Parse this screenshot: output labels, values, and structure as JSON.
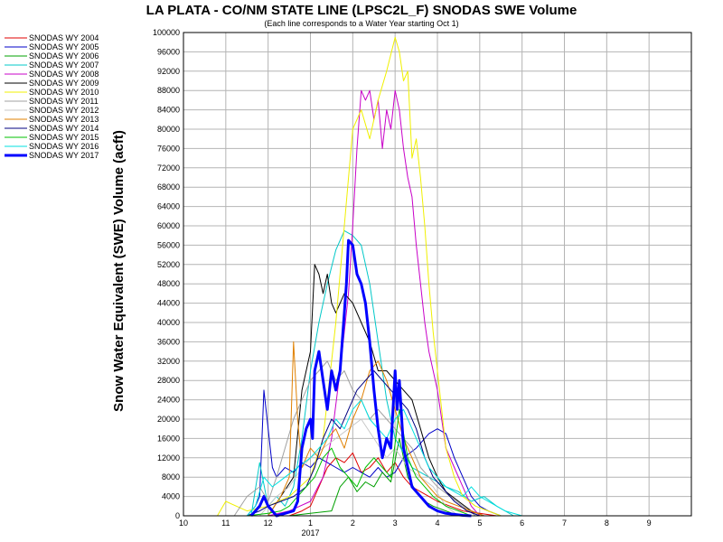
{
  "chart_data": {
    "type": "line",
    "title": "LA PLATA - CO/NM STATE LINE (LPSC2L_F) SNODAS SWE Volume",
    "subtitle": "(Each line corresponds to a Water Year starting Oct 1)",
    "ylabel": "Snow Water Equivalent (SWE) Volume (acft)",
    "xlabel": "",
    "ylim": [
      0,
      100000
    ],
    "yticks": [
      0,
      4000,
      8000,
      12000,
      16000,
      20000,
      24000,
      28000,
      32000,
      36000,
      40000,
      44000,
      48000,
      52000,
      56000,
      60000,
      64000,
      68000,
      72000,
      76000,
      80000,
      84000,
      88000,
      92000,
      96000,
      100000
    ],
    "xticks": [
      {
        "label": "10",
        "x": 0
      },
      {
        "label": "11",
        "x": 1
      },
      {
        "label": "12",
        "x": 2
      },
      {
        "label": "1",
        "x": 3
      },
      {
        "label": "2",
        "x": 4
      },
      {
        "label": "3",
        "x": 5
      },
      {
        "label": "4",
        "x": 6
      },
      {
        "label": "5",
        "x": 7
      },
      {
        "label": "6",
        "x": 8
      },
      {
        "label": "7",
        "x": 9
      },
      {
        "label": "8",
        "x": 10
      },
      {
        "label": "9",
        "x": 11
      }
    ],
    "xlim": [
      0,
      12
    ],
    "year_label": "2017",
    "year_label_x": 3,
    "grid": true,
    "legend_position": "left",
    "series": [
      {
        "name": "SNODAS WY 2004",
        "color": "#e00000",
        "width": 1,
        "x": [
          2.5,
          2.8,
          3.0,
          3.2,
          3.4,
          3.6,
          3.8,
          4.0,
          4.2,
          4.4,
          4.6,
          4.8,
          5.0,
          5.2,
          5.4,
          5.6,
          5.8,
          6.0,
          6.3,
          6.6,
          7.0,
          7.4
        ],
        "y": [
          0,
          1000,
          2000,
          6000,
          10000,
          12000,
          11000,
          13000,
          9000,
          10000,
          12000,
          9000,
          11000,
          8000,
          6000,
          5000,
          4000,
          3000,
          2000,
          1000,
          500,
          0
        ]
      },
      {
        "name": "SNODAS WY 2005",
        "color": "#0000c8",
        "width": 1,
        "x": [
          1.5,
          1.7,
          1.8,
          1.9,
          2.0,
          2.1,
          2.2,
          2.4,
          2.6,
          2.8,
          3.0,
          3.2,
          3.4,
          3.6,
          3.8,
          4.0,
          4.2,
          4.4,
          4.6,
          4.8,
          5.0,
          5.2,
          5.5,
          5.8,
          6.0,
          6.2,
          6.4,
          6.6,
          6.8,
          7.0,
          7.2,
          7.5
        ],
        "y": [
          0,
          2000,
          4000,
          26000,
          18000,
          10000,
          8000,
          10000,
          9000,
          11000,
          10000,
          12000,
          11000,
          10000,
          9000,
          10000,
          9000,
          8000,
          10000,
          8000,
          9000,
          12000,
          14000,
          17000,
          18000,
          17000,
          12000,
          8000,
          4000,
          2000,
          1000,
          0
        ]
      },
      {
        "name": "SNODAS WY 2006",
        "color": "#00a000",
        "width": 1,
        "x": [
          2.5,
          3.0,
          3.5,
          3.7,
          3.9,
          4.1,
          4.3,
          4.5,
          4.7,
          4.9,
          5.1,
          5.3,
          5.5,
          5.7,
          5.9,
          6.2,
          6.5
        ],
        "y": [
          0,
          500,
          1000,
          6000,
          8000,
          5000,
          7000,
          6000,
          9000,
          7000,
          16000,
          8000,
          5000,
          3000,
          2000,
          1000,
          0
        ]
      },
      {
        "name": "SNODAS WY 2007",
        "color": "#00c8c8",
        "width": 1,
        "x": [
          1.6,
          1.8,
          2.0,
          2.2,
          2.4,
          2.6,
          2.8,
          3.0,
          3.2,
          3.4,
          3.6,
          3.8,
          4.0,
          4.2,
          4.4,
          4.6,
          4.8,
          5.0,
          5.2,
          5.4,
          5.6,
          5.8,
          6.0,
          6.2,
          6.5,
          6.8,
          7.1,
          7.4,
          7.8
        ],
        "y": [
          0,
          11000,
          2000,
          4000,
          2000,
          6000,
          16000,
          30000,
          40000,
          48000,
          55000,
          59000,
          58000,
          56000,
          48000,
          36000,
          24000,
          16000,
          13000,
          10000,
          9000,
          8000,
          7000,
          6000,
          5000,
          3000,
          4000,
          2000,
          0
        ]
      },
      {
        "name": "SNODAS WY 2008",
        "color": "#c800c8",
        "width": 1,
        "x": [
          2.0,
          2.5,
          3.0,
          3.3,
          3.5,
          3.7,
          3.9,
          4.0,
          4.1,
          4.2,
          4.3,
          4.4,
          4.5,
          4.6,
          4.7,
          4.8,
          4.9,
          5.0,
          5.1,
          5.2,
          5.3,
          5.4,
          5.5,
          5.6,
          5.7,
          5.8,
          5.9,
          6.0,
          6.1,
          6.2,
          6.4,
          6.6,
          6.8,
          7.0
        ],
        "y": [
          0,
          1000,
          3000,
          8000,
          16000,
          30000,
          46000,
          60000,
          76000,
          88000,
          86000,
          88000,
          82000,
          86000,
          76000,
          84000,
          80000,
          88000,
          84000,
          76000,
          70000,
          66000,
          56000,
          48000,
          40000,
          34000,
          30000,
          26000,
          20000,
          14000,
          10000,
          6000,
          2000,
          0
        ]
      },
      {
        "name": "SNODAS WY 2009",
        "color": "#000000",
        "width": 1,
        "x": [
          2.0,
          2.3,
          2.6,
          2.8,
          3.0,
          3.1,
          3.2,
          3.3,
          3.4,
          3.5,
          3.6,
          3.8,
          4.0,
          4.2,
          4.4,
          4.6,
          4.8,
          5.0,
          5.2,
          5.4,
          5.6,
          5.8,
          6.0,
          6.2,
          6.5,
          6.8,
          7.1
        ],
        "y": [
          0,
          4000,
          8000,
          26000,
          34000,
          52000,
          50000,
          46000,
          50000,
          44000,
          42000,
          46000,
          44000,
          40000,
          36000,
          30000,
          30000,
          28000,
          26000,
          24000,
          18000,
          12000,
          8000,
          5000,
          3000,
          1000,
          0
        ]
      },
      {
        "name": "SNODAS WY 2010",
        "color": "#f0f000",
        "width": 1,
        "x": [
          0.8,
          1.0,
          1.5,
          2.0,
          2.5,
          3.0,
          3.3,
          3.6,
          3.8,
          4.0,
          4.2,
          4.4,
          4.6,
          4.8,
          5.0,
          5.1,
          5.2,
          5.3,
          5.4,
          5.5,
          5.6,
          5.7,
          5.8,
          5.9,
          6.0,
          6.1,
          6.2,
          6.4,
          6.6,
          6.9,
          7.2,
          7.5
        ],
        "y": [
          0,
          3000,
          1000,
          2000,
          4000,
          8000,
          16000,
          40000,
          60000,
          80000,
          84000,
          78000,
          86000,
          92000,
          99000,
          96000,
          90000,
          92000,
          74000,
          78000,
          70000,
          60000,
          48000,
          38000,
          30000,
          22000,
          14000,
          8000,
          4000,
          2000,
          1000,
          0
        ]
      },
      {
        "name": "SNODAS WY 2011",
        "color": "#a0a0a0",
        "width": 1,
        "x": [
          1.2,
          1.5,
          1.8,
          2.0,
          2.2,
          2.4,
          2.6,
          2.8,
          3.0,
          3.2,
          3.4,
          3.6,
          3.8,
          4.0,
          4.2,
          4.4,
          4.6,
          4.8,
          5.0,
          5.2,
          5.4,
          5.6,
          5.8,
          6.0,
          6.3,
          6.6,
          6.9
        ],
        "y": [
          0,
          4000,
          6000,
          3000,
          8000,
          14000,
          20000,
          24000,
          28000,
          30000,
          32000,
          28000,
          30000,
          26000,
          24000,
          20000,
          22000,
          20000,
          18000,
          16000,
          14000,
          10000,
          8000,
          6000,
          4000,
          2000,
          0
        ]
      },
      {
        "name": "SNODAS WY 2012",
        "color": "#c8c8c8",
        "width": 1,
        "x": [
          1.8,
          2.0,
          2.2,
          2.5,
          2.8,
          3.0,
          3.3,
          3.6,
          3.9,
          4.2,
          4.5,
          4.8,
          5.0,
          5.3,
          5.6,
          5.9,
          6.2,
          6.5
        ],
        "y": [
          0,
          2000,
          4000,
          6000,
          10000,
          12000,
          14000,
          16000,
          18000,
          20000,
          16000,
          12000,
          14000,
          10000,
          8000,
          6000,
          2000,
          0
        ]
      },
      {
        "name": "SNODAS WY 2013",
        "color": "#e08000",
        "width": 1,
        "x": [
          2.0,
          2.3,
          2.5,
          2.6,
          2.7,
          2.8,
          3.0,
          3.2,
          3.4,
          3.6,
          3.8,
          4.0,
          4.2,
          4.4,
          4.6,
          4.8,
          5.0,
          5.2,
          5.4,
          5.6,
          5.8,
          6.0,
          6.2,
          6.5,
          6.8,
          7.1
        ],
        "y": [
          0,
          4000,
          8000,
          36000,
          20000,
          10000,
          14000,
          12000,
          16000,
          18000,
          14000,
          20000,
          24000,
          30000,
          32000,
          28000,
          22000,
          16000,
          12000,
          8000,
          6000,
          4000,
          3000,
          2000,
          1000,
          0
        ]
      },
      {
        "name": "SNODAS WY 2014",
        "color": "#000080",
        "width": 1,
        "x": [
          1.5,
          1.8,
          2.0,
          2.3,
          2.6,
          2.9,
          3.1,
          3.3,
          3.5,
          3.7,
          3.9,
          4.1,
          4.3,
          4.5,
          4.7,
          4.9,
          5.1,
          5.3,
          5.5,
          5.7,
          5.9,
          6.1,
          6.4,
          6.7,
          7.0
        ],
        "y": [
          0,
          1000,
          2000,
          3000,
          4000,
          6000,
          10000,
          16000,
          20000,
          18000,
          22000,
          26000,
          28000,
          30000,
          28000,
          26000,
          24000,
          22000,
          18000,
          12000,
          8000,
          6000,
          3000,
          1000,
          0
        ]
      },
      {
        "name": "SNODAS WY 2015",
        "color": "#00c000",
        "width": 1,
        "x": [
          1.5,
          2.0,
          2.3,
          2.5,
          2.7,
          2.9,
          3.1,
          3.3,
          3.5,
          3.7,
          3.9,
          4.1,
          4.3,
          4.5,
          4.7,
          4.9,
          5.1,
          5.3,
          5.5,
          5.7,
          5.9,
          6.2,
          6.5,
          6.8
        ],
        "y": [
          0,
          500,
          1000,
          2000,
          4000,
          6000,
          8000,
          12000,
          14000,
          10000,
          8000,
          6000,
          10000,
          12000,
          10000,
          8000,
          22000,
          12000,
          8000,
          6000,
          4000,
          2000,
          1000,
          0
        ]
      },
      {
        "name": "SNODAS WY 2016",
        "color": "#00e0e0",
        "width": 1,
        "x": [
          1.5,
          1.7,
          1.9,
          2.1,
          2.4,
          2.7,
          3.0,
          3.2,
          3.4,
          3.6,
          3.8,
          4.0,
          4.2,
          4.4,
          4.6,
          4.8,
          5.0,
          5.2,
          5.4,
          5.6,
          5.8,
          6.0,
          6.2,
          6.4,
          6.6,
          6.8,
          7.0,
          7.2,
          7.6,
          8.0
        ],
        "y": [
          0,
          2000,
          8000,
          6000,
          8000,
          10000,
          12000,
          14000,
          16000,
          20000,
          18000,
          22000,
          24000,
          20000,
          18000,
          16000,
          20000,
          22000,
          18000,
          14000,
          10000,
          8000,
          6000,
          5000,
          4000,
          6000,
          4000,
          3000,
          1000,
          0
        ]
      },
      {
        "name": "SNODAS WY 2017",
        "color": "#0000ff",
        "width": 3,
        "x": [
          1.6,
          1.8,
          1.9,
          2.0,
          2.1,
          2.2,
          2.4,
          2.6,
          2.7,
          2.8,
          2.9,
          3.0,
          3.05,
          3.1,
          3.2,
          3.3,
          3.4,
          3.5,
          3.6,
          3.7,
          3.8,
          3.85,
          3.9,
          4.0,
          4.1,
          4.2,
          4.3,
          4.4,
          4.5,
          4.6,
          4.7,
          4.8,
          4.9,
          5.0,
          5.05,
          5.1,
          5.2,
          5.3,
          5.4,
          5.5,
          5.6,
          5.7,
          5.8,
          5.9,
          6.0,
          6.2,
          6.4,
          6.6,
          6.8
        ],
        "y": [
          0,
          2000,
          4000,
          2000,
          1000,
          0,
          500,
          1000,
          3000,
          14000,
          18000,
          20000,
          16000,
          30000,
          34000,
          28000,
          22000,
          30000,
          26000,
          30000,
          42000,
          48000,
          57000,
          56000,
          50000,
          48000,
          44000,
          36000,
          26000,
          18000,
          12000,
          16000,
          14000,
          30000,
          22000,
          28000,
          14000,
          10000,
          6000,
          5000,
          4000,
          3000,
          2000,
          1500,
          1000,
          500,
          300,
          100,
          0
        ]
      }
    ]
  }
}
